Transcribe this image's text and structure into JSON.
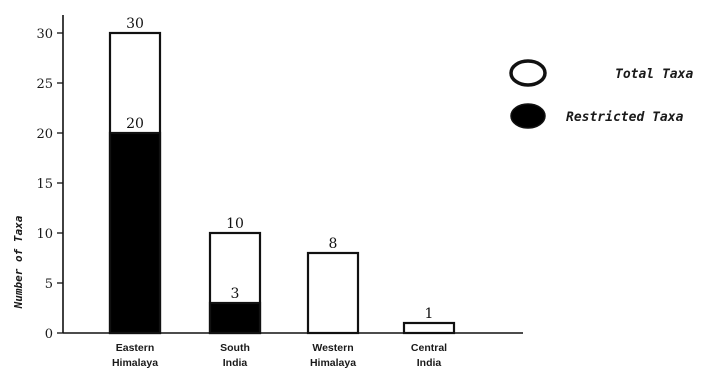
{
  "chart_data": {
    "type": "bar",
    "categories": [
      [
        "Eastern",
        "Himalaya"
      ],
      [
        "South",
        "India"
      ],
      [
        "Western",
        "Himalaya"
      ],
      [
        "Central",
        "India"
      ]
    ],
    "series": [
      {
        "name": "Total Taxa",
        "values": [
          30,
          10,
          8,
          1
        ],
        "color": "#ffffff"
      },
      {
        "name": "Restricted Taxa",
        "values": [
          20,
          3,
          null,
          null
        ],
        "color": "#000000"
      }
    ],
    "value_labels": {
      "total": [
        "30",
        "10",
        "8",
        "1"
      ],
      "restricted": [
        "20",
        "3",
        "",
        ""
      ]
    },
    "ylabel": "Number of Taxa",
    "ylim": [
      0,
      30
    ],
    "yticks": [
      0,
      5,
      10,
      15,
      20,
      25,
      30
    ],
    "grid": false,
    "legend_position": "top-right"
  },
  "legend": {
    "items": [
      {
        "label": "Total Taxa",
        "marker": "open-circle"
      },
      {
        "label": "Restricted Taxa",
        "marker": "filled-circle"
      }
    ]
  },
  "colors": {
    "ink": "#111111",
    "background": "#ffffff"
  }
}
